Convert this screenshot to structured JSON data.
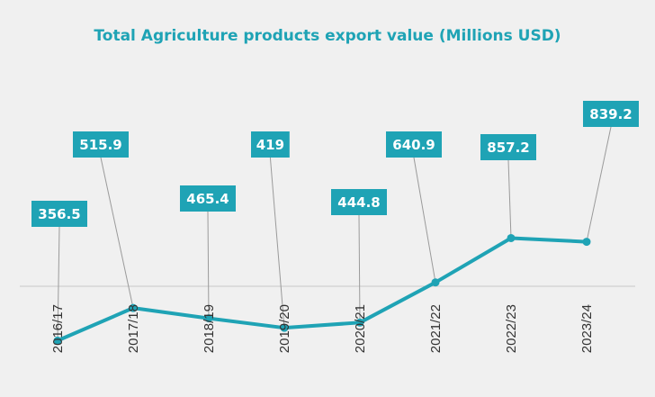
{
  "chart_data": {
    "type": "line",
    "title": "Total Agriculture products export value (Millions USD)",
    "categories": [
      "2016/17",
      "2017/18",
      "2018/19",
      "2019/20",
      "2020/21",
      "2021/22",
      "2022/23",
      "2023/24"
    ],
    "values": [
      356.5,
      515.9,
      465.4,
      419,
      444.8,
      640.9,
      857.2,
      839.2
    ],
    "data_labels": [
      "356.5",
      "515.9",
      "465.4",
      "419",
      "444.8",
      "640.9",
      "857.2",
      "839.2"
    ],
    "xlabel": "",
    "ylabel": "",
    "ylim": [
      0,
      1100
    ],
    "grid": false,
    "legend": "none",
    "colors": {
      "line": "#1fa3b5",
      "label_bg": "#1fa3b5",
      "title": "#1fa3b5",
      "axis": "#c8c8c8",
      "leader": "#9a9a9a"
    }
  }
}
